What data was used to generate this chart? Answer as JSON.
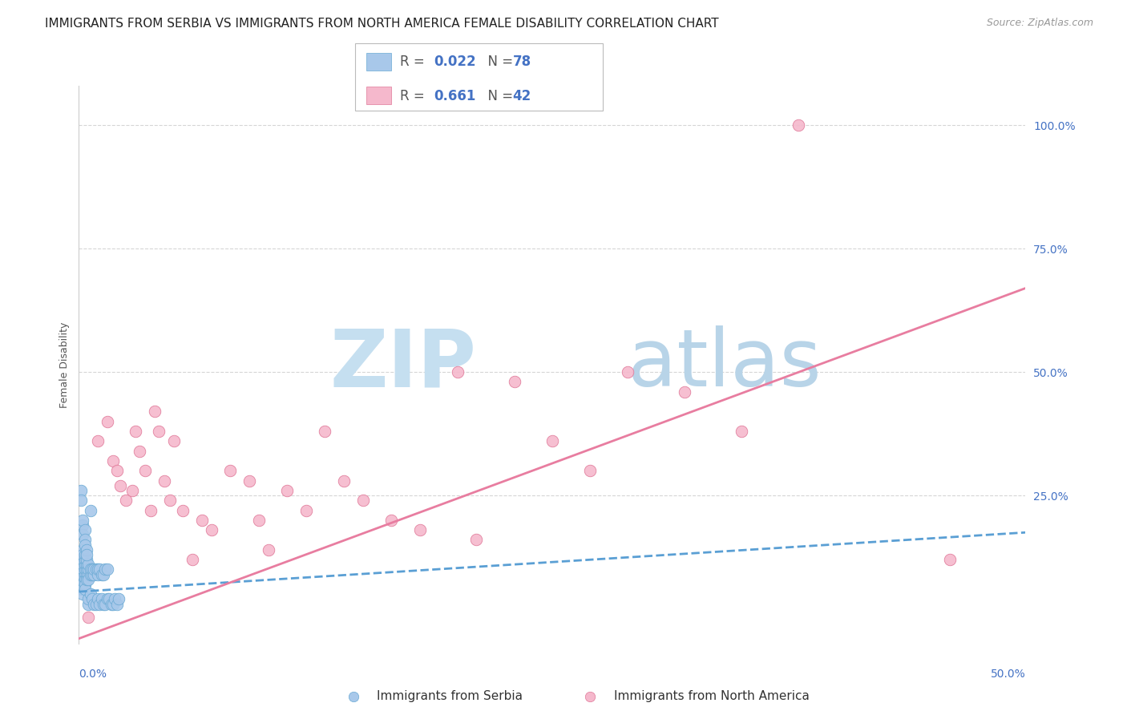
{
  "title": "IMMIGRANTS FROM SERBIA VS IMMIGRANTS FROM NORTH AMERICA FEMALE DISABILITY CORRELATION CHART",
  "source": "Source: ZipAtlas.com",
  "ylabel": "Female Disability",
  "xlim": [
    0.0,
    0.5
  ],
  "ylim": [
    -0.05,
    1.08
  ],
  "yticks": [
    0.0,
    0.25,
    0.5,
    0.75,
    1.0
  ],
  "ytick_labels": [
    "",
    "25.0%",
    "50.0%",
    "75.0%",
    "100.0%"
  ],
  "serbia_color": "#a8c8ea",
  "serbia_edge": "#6aaad4",
  "na_color": "#f5b8cc",
  "na_edge": "#e07898",
  "serbia_R": "0.022",
  "serbia_N": "78",
  "na_R": "0.661",
  "na_N": "42",
  "legend_label_serbia": "Immigrants from Serbia",
  "legend_label_na": "Immigrants from North America",
  "serbia_trend_x": [
    0.0,
    0.5
  ],
  "serbia_trend_y": [
    0.055,
    0.175
  ],
  "na_trend_x": [
    0.0,
    0.5
  ],
  "na_trend_y": [
    -0.04,
    0.67
  ],
  "serbia_points_x": [
    0.001,
    0.001,
    0.001,
    0.001,
    0.001,
    0.001,
    0.001,
    0.002,
    0.002,
    0.002,
    0.002,
    0.002,
    0.002,
    0.002,
    0.002,
    0.002,
    0.002,
    0.002,
    0.003,
    0.003,
    0.003,
    0.003,
    0.003,
    0.003,
    0.003,
    0.003,
    0.004,
    0.004,
    0.004,
    0.004,
    0.004,
    0.005,
    0.005,
    0.005,
    0.005,
    0.006,
    0.006,
    0.006,
    0.007,
    0.007,
    0.008,
    0.008,
    0.009,
    0.01,
    0.01,
    0.011,
    0.012,
    0.013,
    0.014,
    0.015,
    0.001,
    0.001,
    0.002,
    0.002,
    0.002,
    0.003,
    0.003,
    0.003,
    0.004,
    0.004,
    0.005,
    0.005,
    0.006,
    0.007,
    0.008,
    0.009,
    0.01,
    0.011,
    0.012,
    0.013,
    0.014,
    0.015,
    0.016,
    0.017,
    0.018,
    0.019,
    0.02,
    0.021
  ],
  "serbia_points_y": [
    0.08,
    0.09,
    0.1,
    0.11,
    0.12,
    0.07,
    0.06,
    0.08,
    0.09,
    0.1,
    0.11,
    0.12,
    0.13,
    0.07,
    0.06,
    0.05,
    0.14,
    0.13,
    0.09,
    0.1,
    0.11,
    0.08,
    0.12,
    0.07,
    0.13,
    0.06,
    0.09,
    0.1,
    0.11,
    0.08,
    0.12,
    0.09,
    0.1,
    0.11,
    0.08,
    0.09,
    0.1,
    0.22,
    0.09,
    0.1,
    0.09,
    0.1,
    0.1,
    0.09,
    0.1,
    0.1,
    0.09,
    0.09,
    0.1,
    0.1,
    0.26,
    0.24,
    0.19,
    0.2,
    0.17,
    0.18,
    0.16,
    0.15,
    0.14,
    0.13,
    0.03,
    0.04,
    0.05,
    0.04,
    0.03,
    0.03,
    0.04,
    0.03,
    0.04,
    0.03,
    0.03,
    0.04,
    0.04,
    0.03,
    0.03,
    0.04,
    0.03,
    0.04
  ],
  "na_points_x": [
    0.005,
    0.01,
    0.015,
    0.018,
    0.02,
    0.022,
    0.025,
    0.028,
    0.03,
    0.032,
    0.035,
    0.038,
    0.04,
    0.042,
    0.045,
    0.048,
    0.05,
    0.055,
    0.06,
    0.065,
    0.07,
    0.08,
    0.09,
    0.095,
    0.1,
    0.11,
    0.12,
    0.13,
    0.14,
    0.15,
    0.165,
    0.18,
    0.2,
    0.21,
    0.23,
    0.25,
    0.27,
    0.29,
    0.32,
    0.35,
    0.38,
    0.46
  ],
  "na_points_y": [
    0.003,
    0.36,
    0.4,
    0.32,
    0.3,
    0.27,
    0.24,
    0.26,
    0.38,
    0.34,
    0.3,
    0.22,
    0.42,
    0.38,
    0.28,
    0.24,
    0.36,
    0.22,
    0.12,
    0.2,
    0.18,
    0.3,
    0.28,
    0.2,
    0.14,
    0.26,
    0.22,
    0.38,
    0.28,
    0.24,
    0.2,
    0.18,
    0.5,
    0.16,
    0.48,
    0.36,
    0.3,
    0.5,
    0.46,
    0.38,
    1.0,
    0.12
  ],
  "watermark_zip": "ZIP",
  "watermark_atlas": "atlas",
  "watermark_color_zip": "#c5dff0",
  "watermark_color_atlas": "#b8d4e8",
  "title_fontsize": 11,
  "axis_label_fontsize": 9,
  "tick_fontsize": 10,
  "legend_fontsize": 11,
  "source_fontsize": 9,
  "serbia_trend_color": "#5a9fd4",
  "na_trend_color": "#e87da0",
  "background_color": "#ffffff",
  "grid_color": "#cccccc"
}
